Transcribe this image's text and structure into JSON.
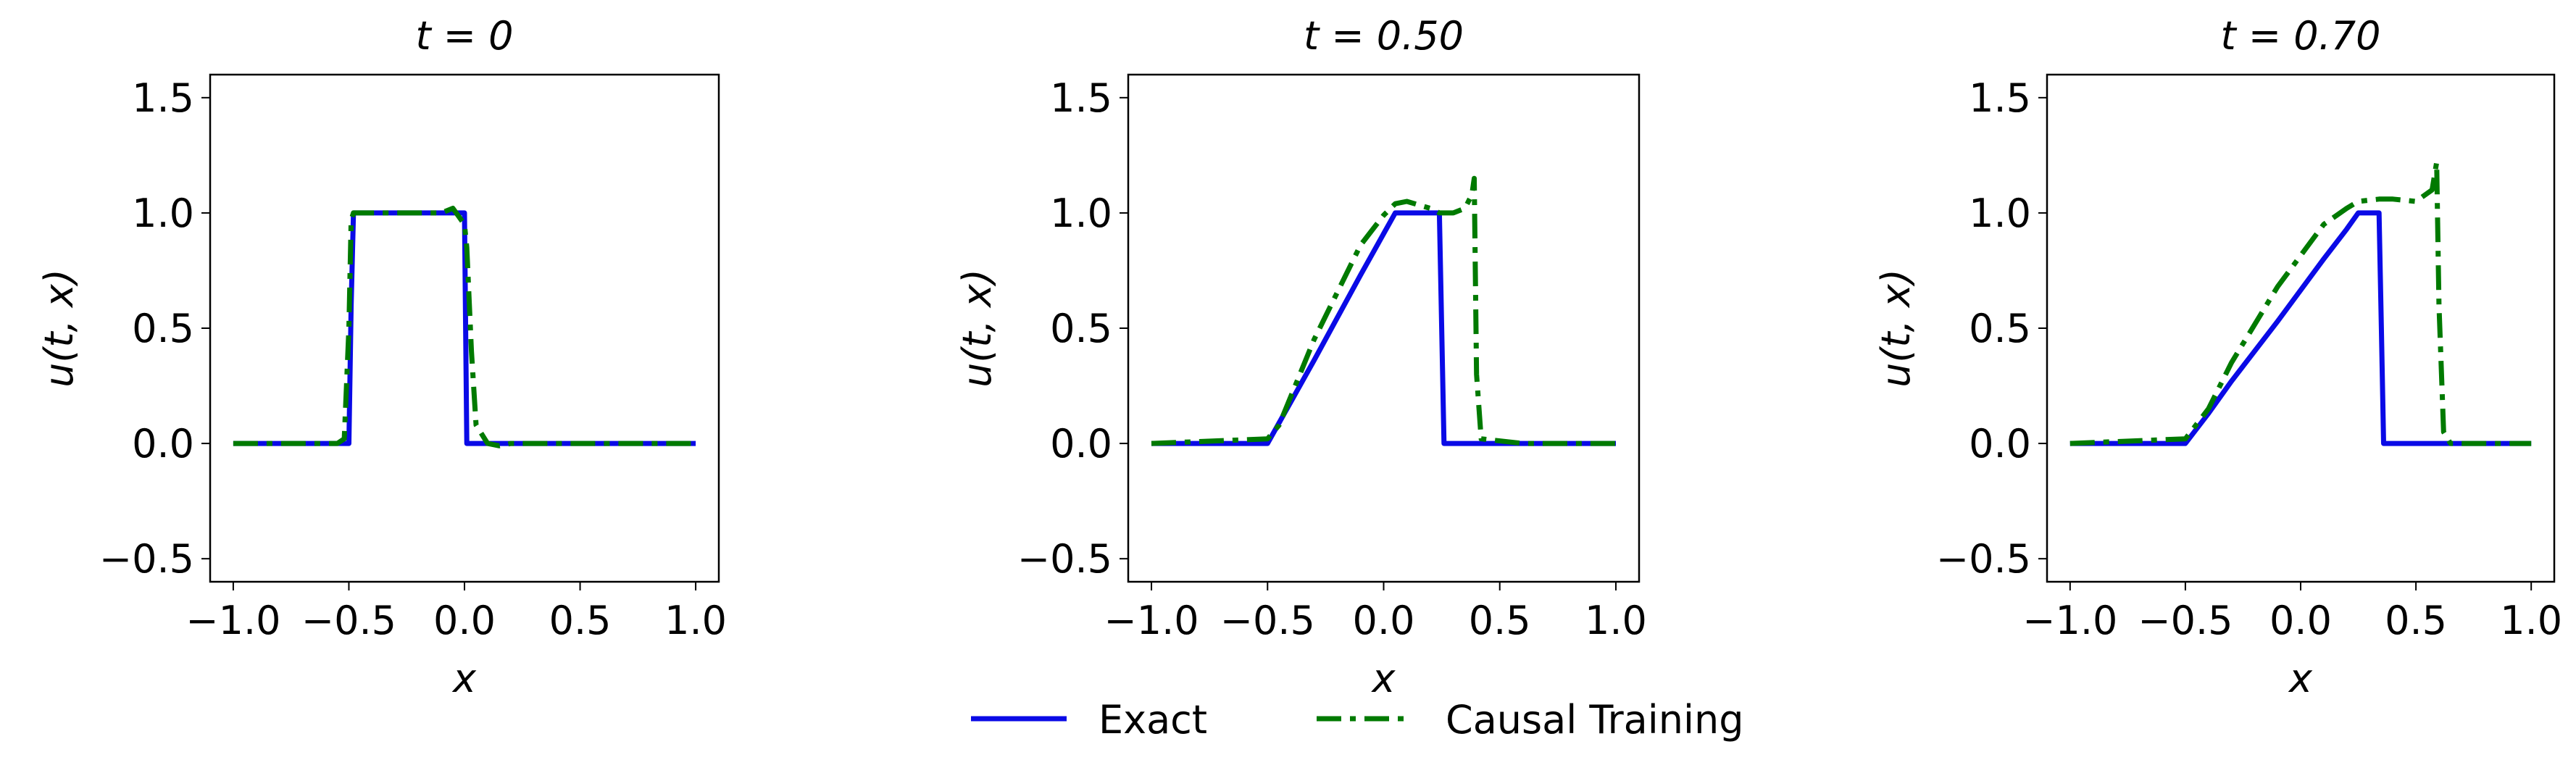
{
  "chart_data": [
    {
      "type": "line",
      "title": "t = 0",
      "xlabel": "x",
      "ylabel": "u(t, x)",
      "x": [
        -1,
        -0.55,
        -0.52,
        -0.5,
        -0.49,
        -0.48,
        -0.3,
        -0.1,
        -0.05,
        0,
        0.01,
        0.03,
        0.05,
        0.1,
        0.15,
        0.2,
        0.5,
        1
      ],
      "series": [
        {
          "name": "Exact",
          "color": "#0a0ae6",
          "style": "solid",
          "values": [
            0,
            0,
            0,
            0,
            0.6,
            1,
            1,
            1,
            1,
            1,
            0,
            0,
            0,
            0,
            0,
            0,
            0,
            0
          ]
        },
        {
          "name": "Causal Training",
          "color": "#007a00",
          "style": "dashdot",
          "values": [
            0,
            0,
            0.02,
            0.5,
            0.97,
            1,
            1,
            1,
            1.02,
            0.95,
            0.85,
            0.4,
            0.08,
            0,
            -0.01,
            0,
            0,
            0
          ]
        }
      ],
      "xlim": [
        -1.1,
        1.1
      ],
      "ylim": [
        -0.6,
        1.6
      ],
      "xticks": [
        {
          "value": -1,
          "label": "−1.0"
        },
        {
          "value": -0.5,
          "label": "−0.5"
        },
        {
          "value": 0,
          "label": "0.0"
        },
        0.5,
        {
          "value": 1,
          "label": "1.0"
        }
      ],
      "yticks": [
        {
          "value": -0.5,
          "label": "−0.5"
        },
        {
          "value": 0,
          "label": "0.0"
        },
        0.5,
        {
          "value": 1,
          "label": "1.0"
        },
        1.5
      ]
    },
    {
      "type": "line",
      "title": "t = 0.50",
      "xlabel": "x",
      "ylabel": "u(t, x)",
      "x": [
        -1,
        -0.5,
        -0.45,
        -0.3,
        -0.1,
        0,
        0.05,
        0.1,
        0.2,
        0.24,
        0.25,
        0.26,
        0.3,
        0.35,
        0.38,
        0.39,
        0.4,
        0.42,
        0.6,
        1
      ],
      "series": [
        {
          "name": "Exact",
          "color": "#0a0ae6",
          "style": "solid",
          "values": [
            0,
            0,
            0.09,
            0.36,
            0.73,
            0.91,
            1,
            1,
            1,
            1,
            0.5,
            0,
            0,
            0,
            0,
            0,
            0,
            0,
            0,
            0
          ]
        },
        {
          "name": "Causal Training",
          "color": "#007a00",
          "style": "dashdot",
          "values": [
            0,
            0.02,
            0.08,
            0.45,
            0.86,
            0.99,
            1.04,
            1.05,
            1.02,
            1,
            1,
            1,
            1,
            1.02,
            1.08,
            1.15,
            0.3,
            0.02,
            0,
            0
          ]
        }
      ],
      "xlim": [
        -1.1,
        1.1
      ],
      "ylim": [
        -0.6,
        1.6
      ],
      "xticks": [
        {
          "value": -1,
          "label": "−1.0"
        },
        {
          "value": -0.5,
          "label": "−0.5"
        },
        {
          "value": 0,
          "label": "0.0"
        },
        0.5,
        {
          "value": 1,
          "label": "1.0"
        }
      ],
      "yticks": [
        {
          "value": -0.5,
          "label": "−0.5"
        },
        {
          "value": 0,
          "label": "0.0"
        },
        0.5,
        {
          "value": 1,
          "label": "1.0"
        },
        1.5
      ]
    },
    {
      "type": "line",
      "title": "t = 0.70",
      "xlabel": "x",
      "ylabel": "u(t, x)",
      "x": [
        -1,
        -0.5,
        -0.4,
        -0.3,
        -0.1,
        0.1,
        0.2,
        0.25,
        0.34,
        0.35,
        0.36,
        0.4,
        0.5,
        0.57,
        0.59,
        0.6,
        0.62,
        0.65,
        1
      ],
      "series": [
        {
          "name": "Exact",
          "color": "#0a0ae6",
          "style": "solid",
          "values": [
            0,
            0,
            0.13,
            0.27,
            0.53,
            0.8,
            0.93,
            1,
            1,
            0.5,
            0,
            0,
            0,
            0,
            0,
            0,
            0,
            0,
            0
          ]
        },
        {
          "name": "Causal Training",
          "color": "#007a00",
          "style": "dashdot",
          "values": [
            0,
            0.02,
            0.15,
            0.35,
            0.68,
            0.95,
            1.02,
            1.05,
            1.06,
            1.06,
            1.06,
            1.06,
            1.05,
            1.1,
            1.22,
            0.6,
            0.05,
            0,
            0
          ]
        }
      ],
      "xlim": [
        -1.1,
        1.1
      ],
      "ylim": [
        -0.6,
        1.6
      ],
      "xticks": [
        {
          "value": -1,
          "label": "−1.0"
        },
        {
          "value": -0.5,
          "label": "−0.5"
        },
        {
          "value": 0,
          "label": "0.0"
        },
        0.5,
        {
          "value": 1,
          "label": "1.0"
        }
      ],
      "yticks": [
        {
          "value": -0.5,
          "label": "−0.5"
        },
        {
          "value": 0,
          "label": "0.0"
        },
        0.5,
        {
          "value": 1,
          "label": "1.0"
        },
        1.5
      ]
    }
  ]
}
